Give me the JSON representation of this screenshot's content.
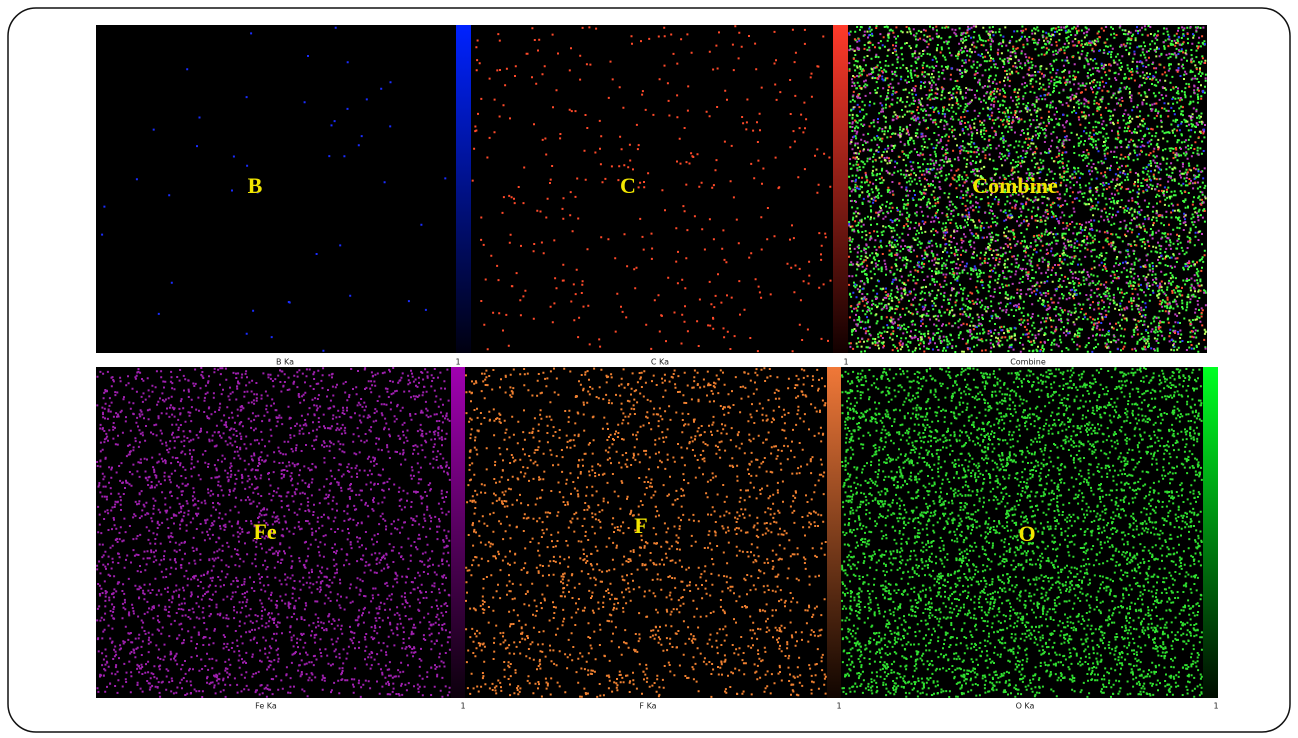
{
  "panels": [
    {
      "label": "B",
      "caption": "B Ka",
      "scale": "1"
    },
    {
      "label": "C",
      "caption": "C Ka",
      "scale": "1"
    },
    {
      "label": "Combine",
      "caption": "Combine"
    },
    {
      "label": "Fe",
      "caption": "Fe Ka",
      "scale": "1"
    },
    {
      "label": "F",
      "caption": "F Ka",
      "scale": "1"
    },
    {
      "label": "O",
      "caption": "O Ka",
      "scale": "1"
    }
  ]
}
